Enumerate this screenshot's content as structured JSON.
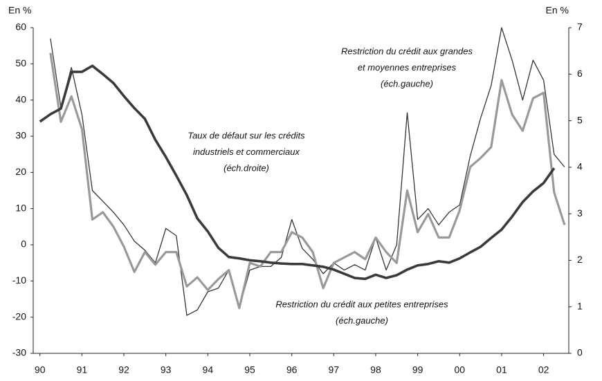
{
  "chart_data": {
    "type": "line",
    "y_label": "En %",
    "y2_label": "En %",
    "x": [
      1990,
      1990.25,
      1990.5,
      1990.75,
      1991,
      1991.25,
      1991.5,
      1991.75,
      1992,
      1992.25,
      1992.5,
      1992.75,
      1993,
      1993.25,
      1993.5,
      1993.75,
      1994,
      1994.25,
      1994.5,
      1994.75,
      1995,
      1995.25,
      1995.5,
      1995.75,
      1996,
      1996.25,
      1996.5,
      1996.75,
      1997,
      1997.25,
      1997.5,
      1997.75,
      1998,
      1998.25,
      1998.5,
      1998.75,
      1999,
      1999.25,
      1999.5,
      1999.75,
      2000,
      2000.25,
      2000.5,
      2000.75,
      2001,
      2001.25,
      2001.5,
      2001.75,
      2002,
      2002.25,
      2002.5
    ],
    "series": [
      {
        "name": "Restriction du crédit aux grandes et moyennes entreprises",
        "color": "#333333",
        "width": 1.3,
        "axis": "y",
        "values": [
          null,
          57,
          38,
          49,
          36,
          15,
          12,
          9,
          5.5,
          1,
          -1.5,
          -5,
          4.5,
          2.5,
          -19.5,
          -18,
          -13,
          -12,
          -7,
          -17.5,
          -7,
          -6,
          -6,
          -3.5,
          7,
          -1,
          -4,
          -8,
          -5,
          -7,
          -5.5,
          -7,
          2,
          -7,
          0,
          36.5,
          7,
          10,
          5.5,
          9,
          11,
          24.5,
          35,
          44,
          60,
          51,
          40,
          51,
          45.5,
          25,
          21.5
        ]
      },
      {
        "name": "Restriction du crédit aux petites entreprises",
        "color": "#999999",
        "width": 3.2,
        "axis": "y",
        "values": [
          null,
          53,
          34,
          41,
          32,
          7,
          9,
          5,
          -0.5,
          -7.5,
          -2,
          -5.5,
          -2,
          -2,
          -11.5,
          -9,
          -12.5,
          -9.5,
          -7,
          -17.5,
          -5,
          -6,
          -2,
          -2,
          3.5,
          2,
          -2,
          -12,
          -5,
          -3.5,
          -2,
          -4,
          2,
          -2,
          -5,
          15,
          3.5,
          8.5,
          2,
          2,
          9.5,
          21.5,
          24,
          27,
          45.5,
          36,
          31.5,
          40.5,
          42,
          14.5,
          5.5
        ]
      },
      {
        "name": "Taux de défaut sur les crédits industriels et commerciaux",
        "color": "#3a3a3a",
        "width": 3.6,
        "axis": "y2",
        "values": [
          4.98,
          5.14,
          5.26,
          6.05,
          6.05,
          6.18,
          6.0,
          5.81,
          5.53,
          5.27,
          5.04,
          4.59,
          4.22,
          3.82,
          3.4,
          2.9,
          2.62,
          2.27,
          2.07,
          2.04,
          2.0,
          1.98,
          1.95,
          1.93,
          1.92,
          1.92,
          1.89,
          1.86,
          1.8,
          1.71,
          1.62,
          1.6,
          1.69,
          1.62,
          1.68,
          1.8,
          1.89,
          1.92,
          1.98,
          1.95,
          2.04,
          2.17,
          2.29,
          2.48,
          2.66,
          2.94,
          3.25,
          3.48,
          3.66,
          3.98,
          null
        ]
      }
    ],
    "annotations": [
      {
        "lines": [
          "Restriction du crédit aux grandes",
          "et moyennes entreprises",
          "(éch.gauche)"
        ]
      },
      {
        "lines": [
          "Taux de défaut sur les crédits",
          "industriels et commerciaux",
          "(éch.droite)"
        ]
      },
      {
        "lines": [
          "Restriction du crédit aux petites entreprises",
          "(éch.gauche)"
        ]
      }
    ],
    "xlim": [
      1989.84,
      2002.6
    ],
    "xticks": [
      {
        "value": 1990,
        "label": "90"
      },
      {
        "value": 1991,
        "label": "91"
      },
      {
        "value": 1992,
        "label": "92"
      },
      {
        "value": 1993,
        "label": "93"
      },
      {
        "value": 1994,
        "label": "94"
      },
      {
        "value": 1995,
        "label": "95"
      },
      {
        "value": 1996,
        "label": "96"
      },
      {
        "value": 1997,
        "label": "97"
      },
      {
        "value": 1998,
        "label": "98"
      },
      {
        "value": 1999,
        "label": "99"
      },
      {
        "value": 2000,
        "label": "00"
      },
      {
        "value": 2001,
        "label": "01"
      },
      {
        "value": 2002,
        "label": "02"
      }
    ],
    "ylim": [
      -30,
      60
    ],
    "yticks": [
      -30,
      -20,
      -10,
      0,
      10,
      20,
      30,
      40,
      50,
      60
    ],
    "y2lim": [
      0,
      7
    ],
    "y2ticks": [
      0,
      1,
      2,
      3,
      4,
      5,
      6,
      7
    ]
  }
}
